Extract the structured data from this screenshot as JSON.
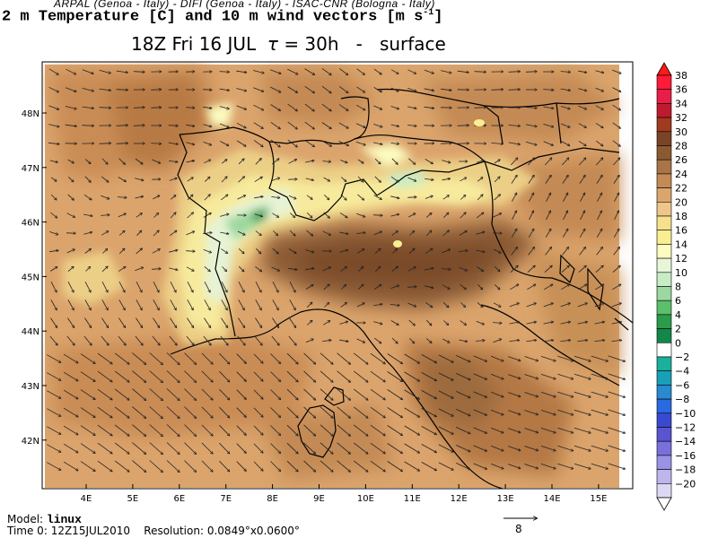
{
  "header": {
    "institutions": "ARPAL (Genoa - Italy)  -  DIFI (Genoa - Italy)  -  ISAC-CNR (Bologna - Italy)",
    "variable_title": "2 m Temperature [C] and 10 m wind vectors [m s",
    "unit_superscript": "-1",
    "variable_title_end": "]",
    "valid_time": "18Z Fri 16 JUL",
    "tau_symbol": "τ",
    "tau_value": "= 30h",
    "separator": "-",
    "level": "surface"
  },
  "axes": {
    "longitude_labels": [
      "4E",
      "5E",
      "6E",
      "7E",
      "8E",
      "9E",
      "10E",
      "11E",
      "12E",
      "13E",
      "14E",
      "15E"
    ],
    "latitude_labels": [
      "48N",
      "47N",
      "46N",
      "45N",
      "44N",
      "43N",
      "42N"
    ]
  },
  "colorbar": {
    "levels": [
      "38",
      "36",
      "34",
      "32",
      "30",
      "28",
      "26",
      "24",
      "22",
      "20",
      "18",
      "16",
      "14",
      "12",
      "10",
      "8",
      "6",
      "4",
      "2",
      "0",
      "−2",
      "−4",
      "−6",
      "−8",
      "−10",
      "−12",
      "−14",
      "−16",
      "−18",
      "−20"
    ],
    "colors": [
      "#ff1a3a",
      "#e81e48",
      "#c01a2e",
      "#a03a20",
      "#7a4428",
      "#8c5a32",
      "#a97448",
      "#c48a55",
      "#dba66e",
      "#eec68a",
      "#f6e08c",
      "#f9ee92",
      "#fcfcc0",
      "#e8f6d8",
      "#c8ecc4",
      "#9cd8a0",
      "#5cbf6a",
      "#2a9c4c",
      "#10884a",
      "#ffffff",
      "#1ab09c",
      "#18a0b8",
      "#2a8ad0",
      "#2a6ae0",
      "#3a4ad0",
      "#5a54d0",
      "#7a70dc",
      "#9a92e4",
      "#bcb6ec",
      "#dcd8f4"
    ],
    "top_arrow_color": "#ff1a1a"
  },
  "footer": {
    "model_label": "Model:",
    "model_value": "linux",
    "time_label": "Time 0:",
    "time_value": "12Z15JUL2010",
    "resolution_label": "Resolution:",
    "resolution_value": "0.0849°x0.0600°",
    "reference_vector_value": "8"
  }
}
